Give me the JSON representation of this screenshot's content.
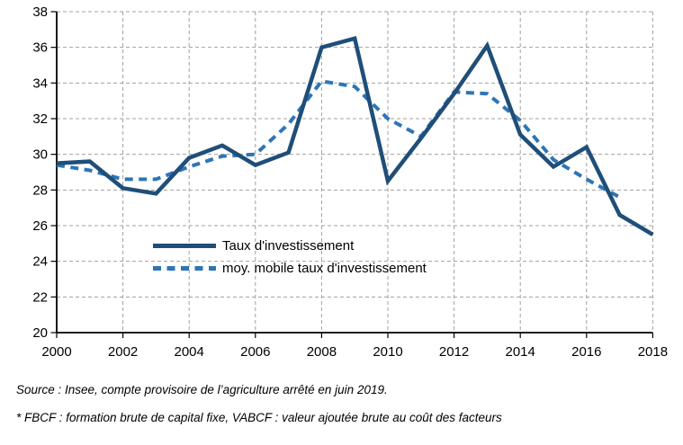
{
  "chart_data": {
    "type": "line",
    "title": "",
    "xlabel": "",
    "ylabel": "",
    "x": [
      2000,
      2001,
      2002,
      2003,
      2004,
      2005,
      2006,
      2007,
      2008,
      2009,
      2010,
      2011,
      2012,
      2013,
      2014,
      2015,
      2016,
      2017,
      2018
    ],
    "x_ticks": [
      2000,
      2002,
      2004,
      2006,
      2008,
      2010,
      2012,
      2014,
      2016,
      2018
    ],
    "y_ticks": [
      20,
      22,
      24,
      26,
      28,
      30,
      32,
      34,
      36,
      38
    ],
    "ylim": [
      20,
      38
    ],
    "xlim": [
      2000,
      2018
    ],
    "grid": true,
    "legend_position": "inside-lower-left",
    "gridline_color": "#a0a0a0",
    "axis_color": "#000000",
    "series": [
      {
        "name": "Taux d'investissement",
        "style": "solid",
        "color": "#1F4E79",
        "values": [
          29.5,
          29.6,
          28.1,
          27.8,
          29.8,
          30.5,
          29.4,
          30.1,
          36.0,
          36.5,
          28.5,
          30.9,
          33.4,
          36.1,
          31.1,
          29.3,
          30.4,
          26.6,
          25.5
        ]
      },
      {
        "name": "moy. mobile taux d'investissement",
        "style": "dashed",
        "color": "#2E75B6",
        "values": [
          29.4,
          29.1,
          28.6,
          28.6,
          29.3,
          29.9,
          30.0,
          31.7,
          34.1,
          33.8,
          32.0,
          31.0,
          33.5,
          33.4,
          31.9,
          29.7,
          28.6,
          27.6,
          null
        ]
      }
    ]
  },
  "footnotes": {
    "source": "Source : Insee, compte provisoire de l’agriculture arrêté en juin 2019.",
    "fbcf": "* FBCF : formation brute de capital fixe, VABCF : valeur ajoutée brute au coût des facteurs"
  }
}
